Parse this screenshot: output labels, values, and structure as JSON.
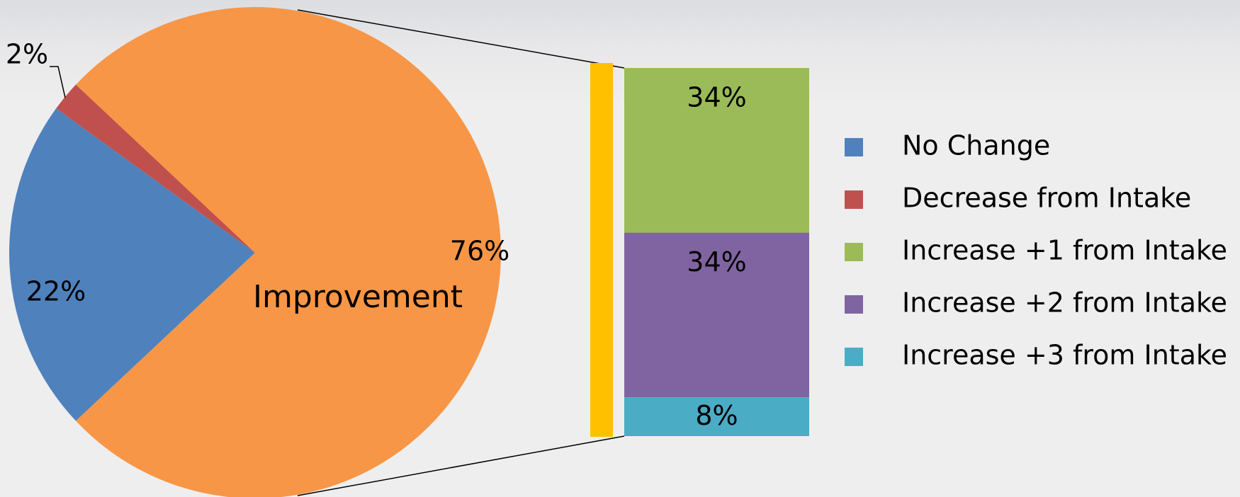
{
  "chart_data": {
    "type": "bar-of-pie",
    "pie": {
      "slices": [
        {
          "name": "No Change",
          "value": 22,
          "label": "22%",
          "color": "#4f81bd"
        },
        {
          "name": "Decrease from Intake",
          "value": 2,
          "label": "2%",
          "color": "#c0504d"
        },
        {
          "name": "Improvement",
          "value": 76,
          "label": "76%",
          "color": "#f79646"
        }
      ],
      "category_label": "Improvement"
    },
    "bar": {
      "segments": [
        {
          "name": "Increase +1 from Intake",
          "value": 34,
          "label": "34%",
          "color": "#9bbb59"
        },
        {
          "name": "Increase +2 from Intake",
          "value": 34,
          "label": "34%",
          "color": "#8064a2"
        },
        {
          "name": "Increase +3 from Intake",
          "value": 8,
          "label": "8%",
          "color": "#4bacc6"
        }
      ],
      "accent_color": "#ffc000"
    },
    "legend": {
      "placement": "right",
      "entries": [
        {
          "name": "No Change",
          "color": "#4f81bd"
        },
        {
          "name": "Decrease from Intake",
          "color": "#c0504d"
        },
        {
          "name": "Increase +1 from Intake",
          "color": "#9bbb59"
        },
        {
          "name": "Increase +2 from Intake",
          "color": "#8064a2"
        },
        {
          "name": "Increase +3 from Intake",
          "color": "#4bacc6"
        }
      ]
    }
  }
}
